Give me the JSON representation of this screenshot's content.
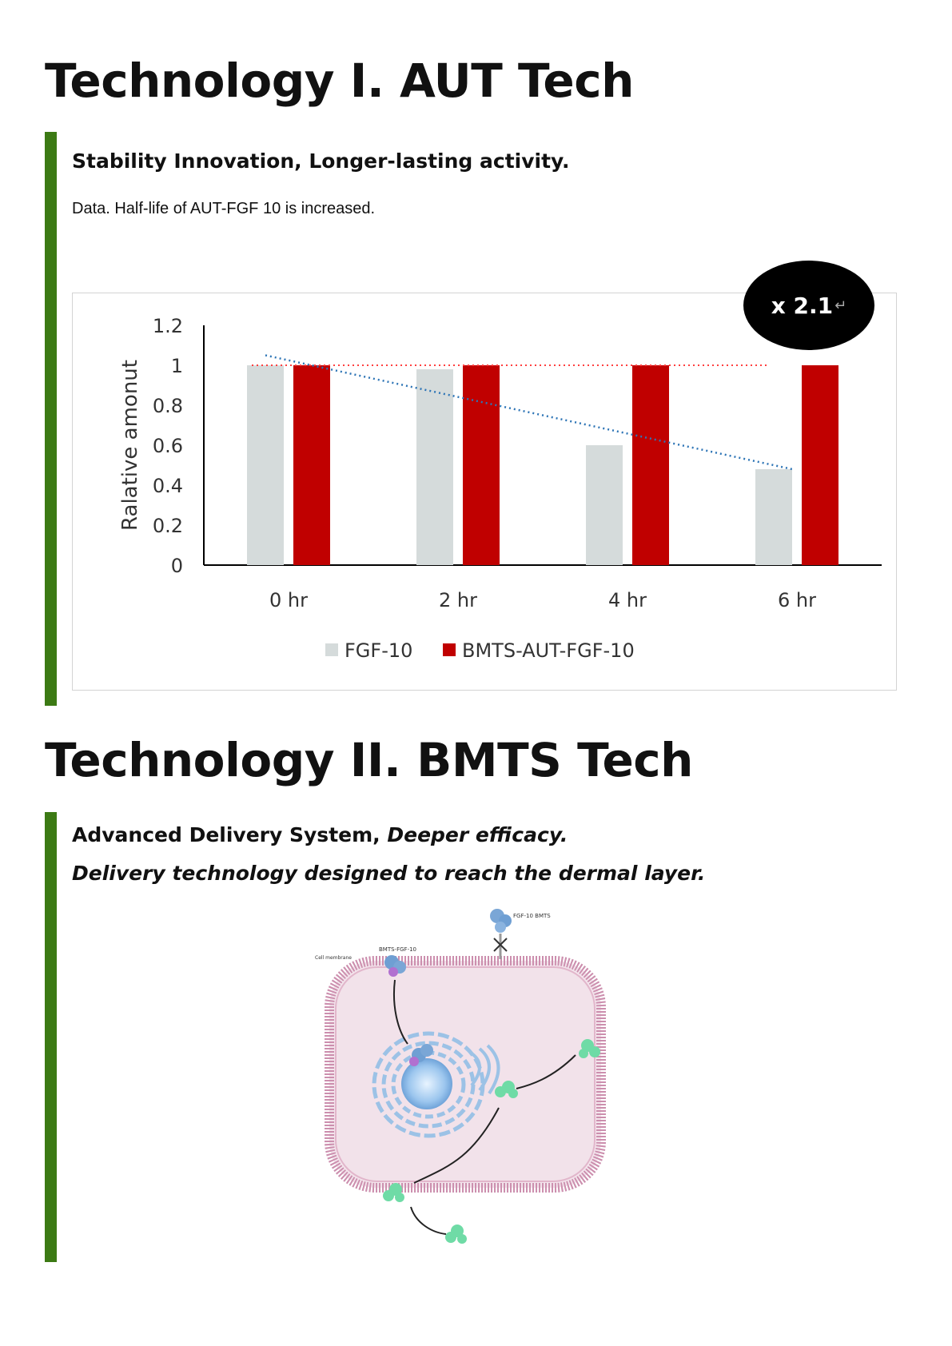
{
  "section1": {
    "title": "Technology I. AUT Tech",
    "subtitle": "Stability Innovation, Longer-lasting activity.",
    "caption": "Data. Half-life of AUT-FGF 10 is increased.",
    "badge": "x 2.1",
    "badge_mark": "↵"
  },
  "section2": {
    "title": "Technology II. BMTS Tech",
    "subtitle_part1": "Advanced Delivery System, ",
    "subtitle_part2": "Deeper efficacy.",
    "subtitle_line2": "Delivery technology designed to reach the dermal layer."
  },
  "diagram": {
    "label_top": "FGF-10 BMTS",
    "label_bmts": "BMTS-FGF-10",
    "label_membrane": "Cell membrane"
  },
  "colors": {
    "accent_green": "#3c7a14",
    "series1": "#d5dbdb",
    "series2": "#c00000",
    "trend": "#2e75b6",
    "reference": "#ff4040"
  },
  "chart_data": {
    "type": "bar",
    "title": "",
    "xlabel": "",
    "ylabel": "Ralative amonut",
    "categories": [
      "0 hr",
      "2 hr",
      "4 hr",
      "6 hr"
    ],
    "series": [
      {
        "name": "FGF-10",
        "values": [
          1.0,
          0.98,
          0.6,
          0.48
        ]
      },
      {
        "name": "BMTS-AUT-FGF-10",
        "values": [
          1.0,
          1.0,
          1.0,
          1.0
        ]
      }
    ],
    "ylim": [
      0,
      1.2
    ],
    "yticks": [
      "0",
      "0.2",
      "0.4",
      "0.6",
      "0.8",
      "1",
      "1.2"
    ],
    "trendline": {
      "series": "FGF-10",
      "style": "dotted",
      "from": 1.05,
      "to": 0.48
    },
    "reference_line": {
      "value": 1.0,
      "style": "dotted"
    },
    "legend": "bottom",
    "grid": false
  }
}
